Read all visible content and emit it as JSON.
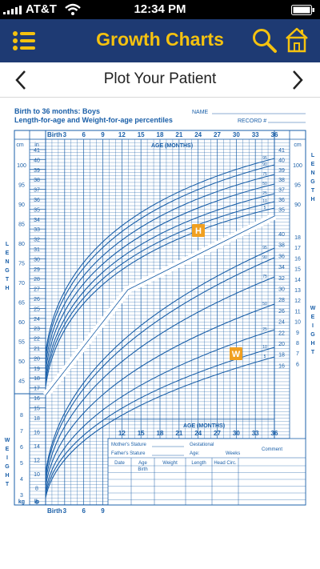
{
  "status_bar": {
    "carrier": "AT&T",
    "time": "12:34 PM"
  },
  "app_bar": {
    "title": "Growth Charts",
    "menu_icon": "menu-icon",
    "search_icon": "search-icon",
    "home_icon": "home-icon"
  },
  "nav": {
    "title": "Plot Your Patient",
    "prev_icon": "chevron-left-icon",
    "next_icon": "chevron-right-icon"
  },
  "chart": {
    "title_line1": "Birth to 36 months: Boys",
    "title_line2": "Length-for-age and Weight-for-age percentiles",
    "name_label": "NAME",
    "record_label": "RECORD #",
    "top_axis": [
      "Birth",
      "3",
      "6",
      "9",
      "12",
      "15",
      "18",
      "21",
      "24",
      "27",
      "30",
      "33",
      "36"
    ],
    "age_label": "AGE (MONTHS)",
    "left_unit_top": "cm",
    "left_unit_in": "in",
    "length_cm": [
      "100",
      "95",
      "90",
      "85",
      "80",
      "75",
      "70",
      "65",
      "60",
      "55",
      "50",
      "45"
    ],
    "length_in": [
      "41",
      "40",
      "39",
      "38",
      "37",
      "36",
      "35",
      "34",
      "33",
      "32",
      "31",
      "30",
      "29",
      "28",
      "27",
      "26",
      "25",
      "24",
      "23",
      "22",
      "21",
      "20",
      "19",
      "18",
      "17",
      "16",
      "15"
    ],
    "right_length_in": [
      "41",
      "40",
      "39",
      "38",
      "37",
      "36",
      "35"
    ],
    "right_length_cm": [
      "100",
      "95",
      "90"
    ],
    "right_weight_kg": [
      "18",
      "17",
      "16",
      "15",
      "14",
      "13",
      "12",
      "11",
      "10",
      "9",
      "8",
      "7",
      "6"
    ],
    "right_weight_lb": [
      "40",
      "38",
      "36",
      "34",
      "32",
      "30",
      "28",
      "26",
      "24",
      "22",
      "20",
      "18",
      "16"
    ],
    "left_weight_kg": [
      "8",
      "7",
      "6",
      "5",
      "4",
      "3"
    ],
    "left_weight_lb": [
      "18",
      "16",
      "14",
      "12",
      "10",
      "8",
      "6"
    ],
    "length_side_label": "LENGTH",
    "weight_side_label": "WEIGHT",
    "percentiles": [
      "95",
      "90",
      "75",
      "50",
      "25",
      "10",
      "5"
    ],
    "marker_length": "H",
    "marker_weight": "W",
    "kg_label": "kg",
    "lb_label": "lb",
    "bottom_axis": [
      "Birth",
      "3",
      "6",
      "9"
    ],
    "lower_age_axis": [
      "12",
      "15",
      "18",
      "21",
      "24",
      "27",
      "30",
      "33",
      "36"
    ],
    "table": {
      "mother_stature": "Mother's Stature",
      "father_stature": "Father's Stature",
      "gestational": "Gestational",
      "age_weeks": "Age:",
      "weeks": "Weeks",
      "comment": "Comment",
      "headers": [
        "Date",
        "Age",
        "Weight",
        "Length",
        "Head Circ."
      ],
      "age_sub": "Birth"
    },
    "colors": {
      "line": "#1a5fa8",
      "bg": "#ffffff",
      "marker": "#f0a020"
    }
  }
}
